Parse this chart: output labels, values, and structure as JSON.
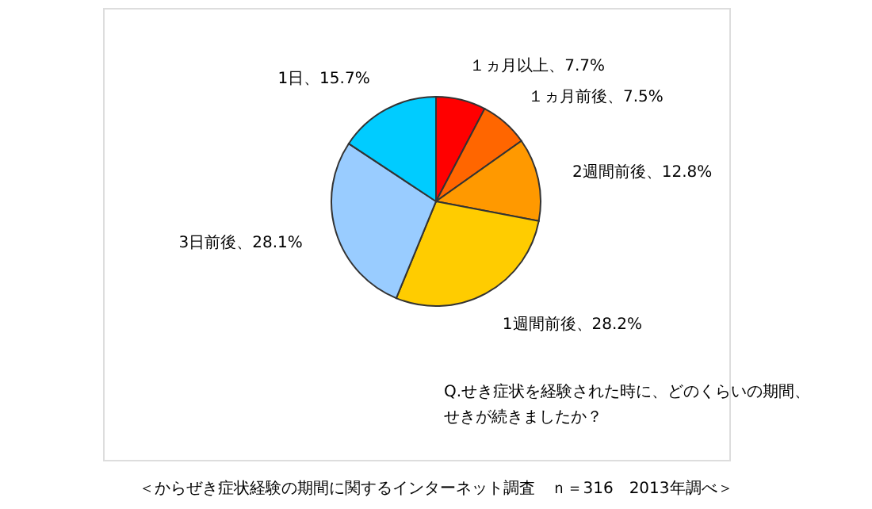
{
  "chart_data": {
    "type": "pie",
    "categories": [
      "１ヵ月以上",
      "１ヵ月前後",
      "2週間前後",
      "1週間前後",
      "3日前後",
      "1日"
    ],
    "values": [
      7.7,
      7.5,
      12.8,
      28.2,
      28.1,
      15.7
    ],
    "value_labels": [
      "7.7%",
      "7.5%",
      "12.8%",
      "28.2%",
      "28.1%",
      "15.7%"
    ],
    "colors": [
      "#ff0000",
      "#ff6600",
      "#ff9900",
      "#ffcc00",
      "#99ccff",
      "#00ccff"
    ],
    "annotations": [
      "Q.せき症状を経験された時に、どのくらいの期間、",
      "せきが続きましたか？",
      "＜からぜき症状経験の期間に関するインターネット調査　ｎ＝316　2013年調べ＞"
    ]
  }
}
